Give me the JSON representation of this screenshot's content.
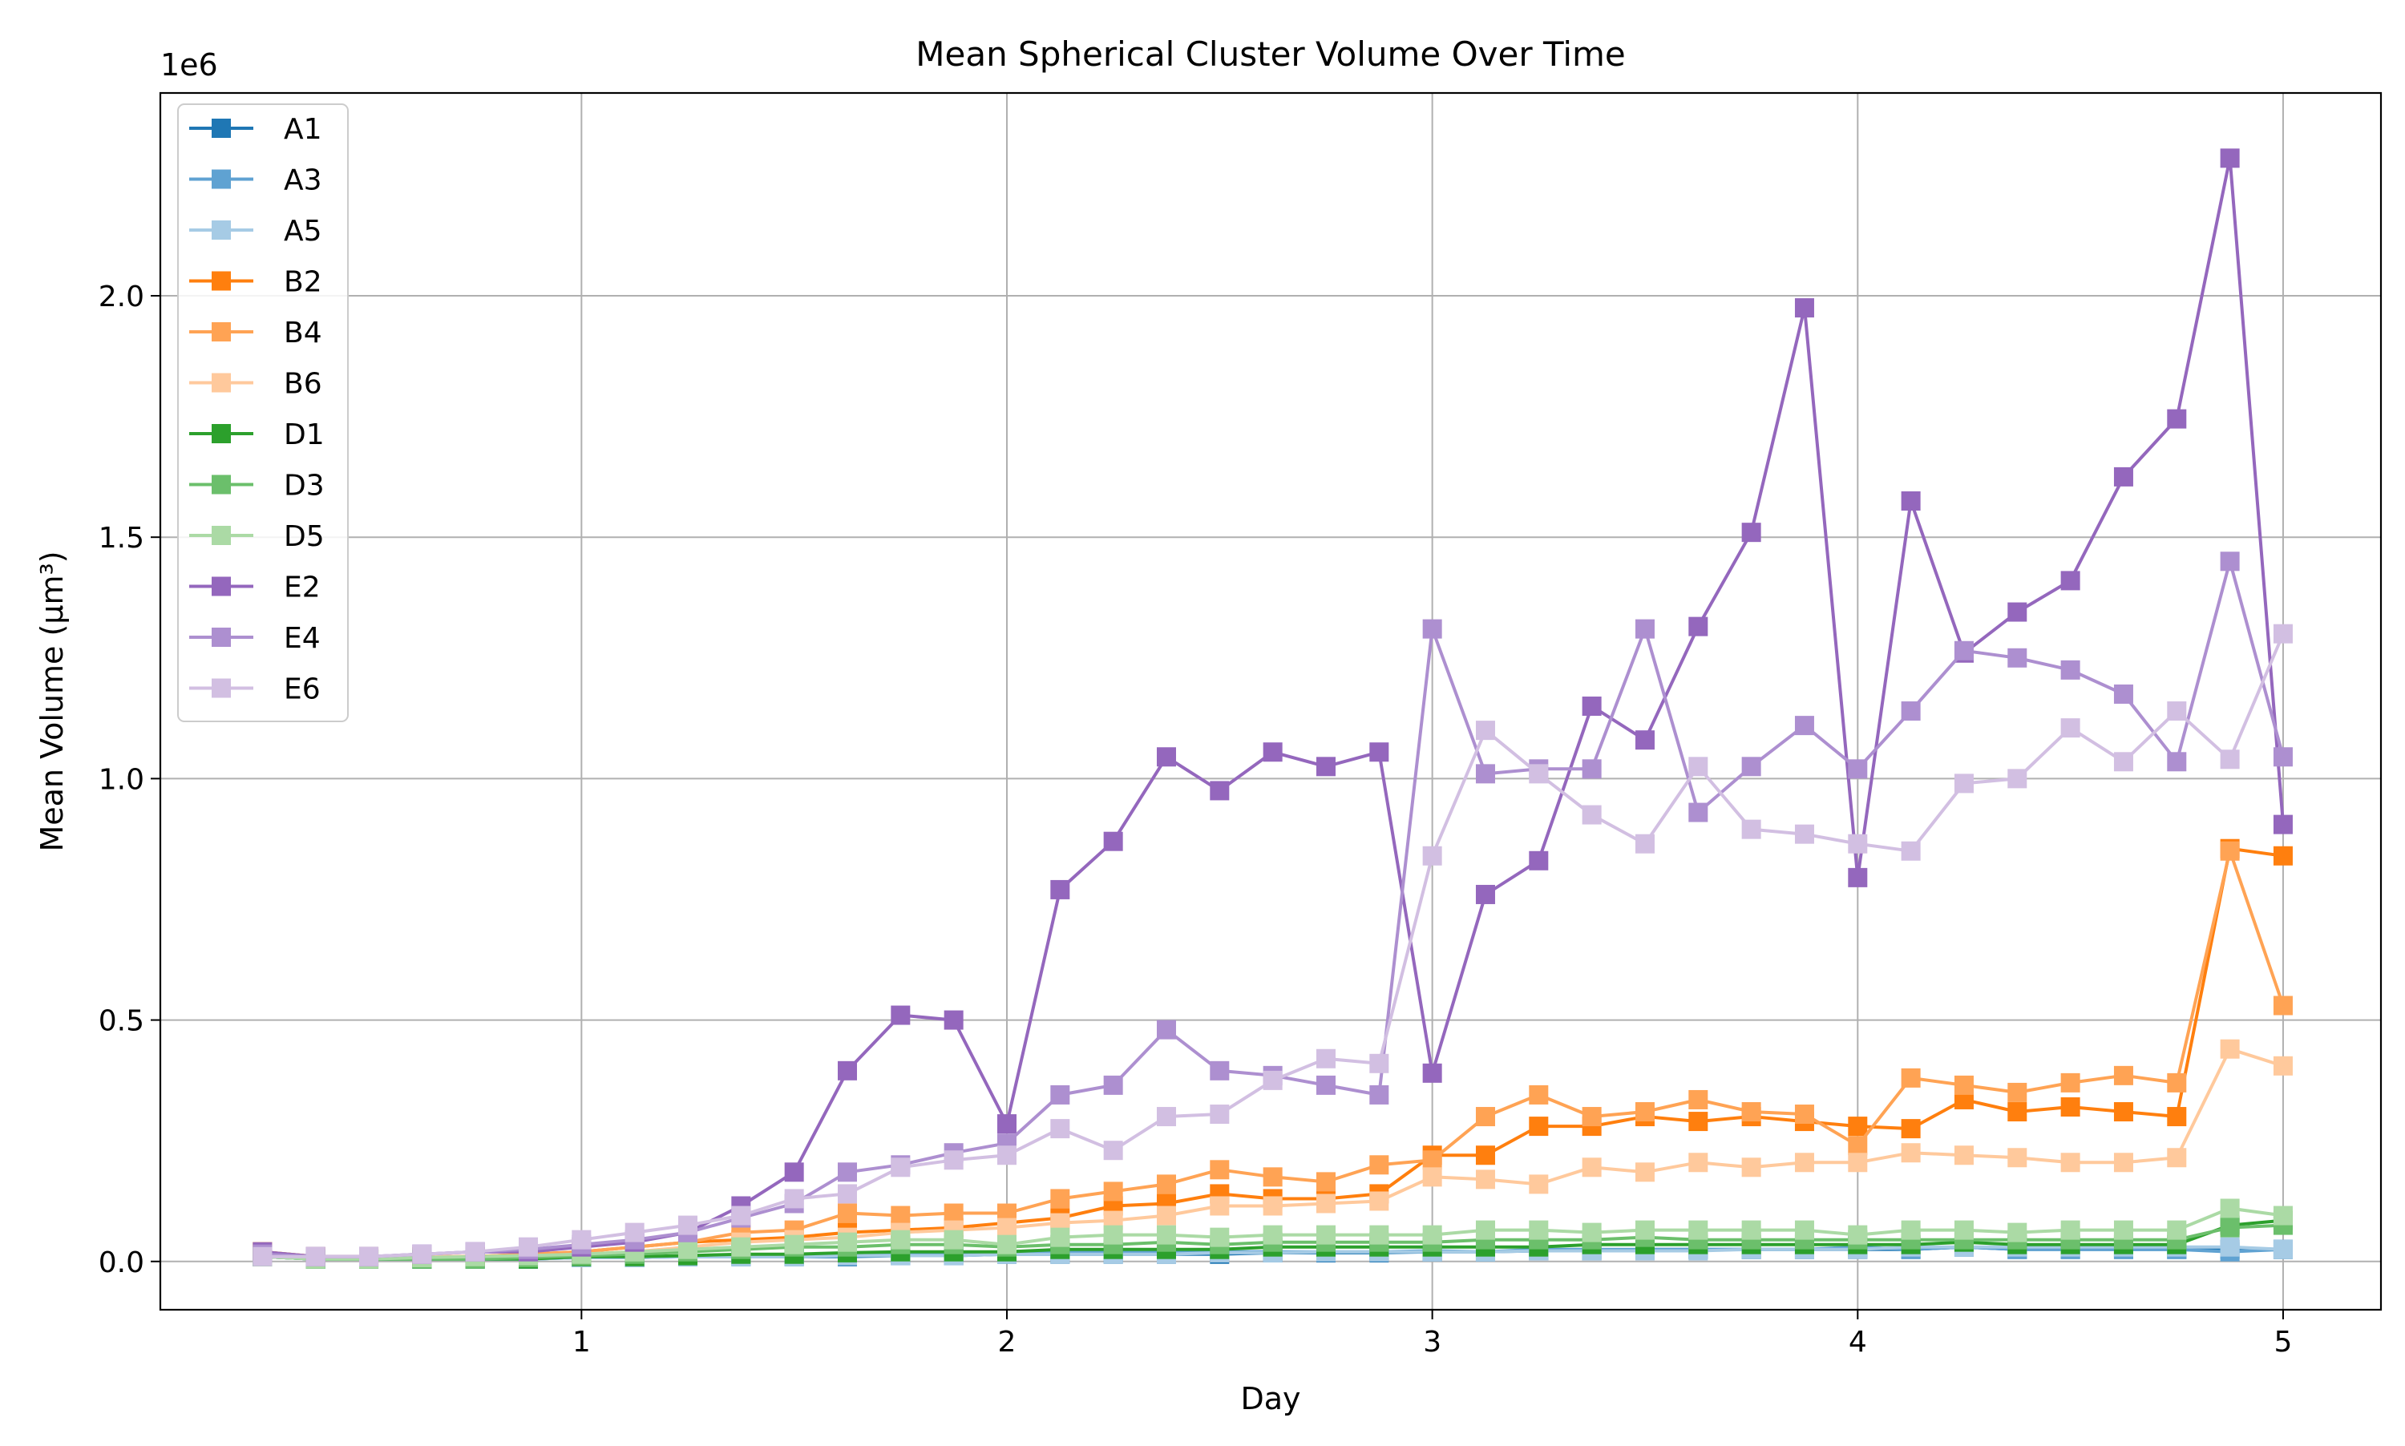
{
  "chart_data": {
    "type": "line",
    "title": "Mean Spherical Cluster Volume Over Time",
    "xlabel": "Day",
    "ylabel": "Mean Volume (µm³)",
    "y_offset_label": "1e6",
    "xlim": [
      0.01,
      5.23
    ],
    "ylim": [
      -0.1,
      2.42
    ],
    "x_ticks": [
      1,
      2,
      3,
      4,
      5
    ],
    "y_ticks": [
      0.0,
      0.5,
      1.0,
      1.5,
      2.0
    ],
    "x_tick_labels": [
      "1",
      "2",
      "3",
      "4",
      "5"
    ],
    "y_tick_labels": [
      "0.0",
      "0.5",
      "1.0",
      "1.5",
      "2.0"
    ],
    "grid": true,
    "legend_position": "upper-left",
    "marker": "square",
    "x": [
      0.25,
      0.375,
      0.5,
      0.625,
      0.75,
      0.875,
      1.0,
      1.125,
      1.25,
      1.375,
      1.5,
      1.625,
      1.75,
      1.875,
      2.0,
      2.125,
      2.25,
      2.375,
      2.5,
      2.625,
      2.75,
      2.875,
      3.0,
      3.125,
      3.25,
      3.375,
      3.5,
      3.625,
      3.75,
      3.875,
      4.0,
      4.125,
      4.25,
      4.375,
      4.5,
      4.625,
      4.75,
      4.875,
      5.0
    ],
    "series": [
      {
        "name": "A1",
        "color": "#1f77b4",
        "values": [
          0.01,
          0.005,
          0.005,
          0.005,
          0.005,
          0.005,
          0.008,
          0.008,
          0.01,
          0.01,
          0.01,
          0.01,
          0.012,
          0.012,
          0.015,
          0.015,
          0.015,
          0.015,
          0.015,
          0.018,
          0.018,
          0.018,
          0.02,
          0.02,
          0.022,
          0.022,
          0.025,
          0.025,
          0.025,
          0.025,
          0.025,
          0.025,
          0.03,
          0.025,
          0.025,
          0.025,
          0.025,
          0.025,
          0.025
        ]
      },
      {
        "name": "A3",
        "color": "#5fa2d2",
        "values": [
          0.01,
          0.005,
          0.005,
          0.005,
          0.005,
          0.005,
          0.008,
          0.008,
          0.01,
          0.012,
          0.012,
          0.015,
          0.015,
          0.018,
          0.018,
          0.02,
          0.02,
          0.02,
          0.02,
          0.02,
          0.02,
          0.02,
          0.022,
          0.02,
          0.025,
          0.025,
          0.025,
          0.025,
          0.025,
          0.025,
          0.03,
          0.025,
          0.03,
          0.025,
          0.025,
          0.025,
          0.025,
          0.02,
          0.025
        ]
      },
      {
        "name": "A5",
        "color": "#a6cbe5",
        "values": [
          0.01,
          0.005,
          0.005,
          0.005,
          0.005,
          0.005,
          0.008,
          0.008,
          0.01,
          0.01,
          0.01,
          0.012,
          0.012,
          0.012,
          0.015,
          0.015,
          0.015,
          0.015,
          0.018,
          0.018,
          0.02,
          0.02,
          0.02,
          0.02,
          0.022,
          0.022,
          0.022,
          0.022,
          0.025,
          0.025,
          0.025,
          0.03,
          0.03,
          0.03,
          0.03,
          0.03,
          0.03,
          0.03,
          0.025
        ]
      },
      {
        "name": "B2",
        "color": "#ff7f0e",
        "values": [
          0.02,
          0.01,
          0.01,
          0.01,
          0.01,
          0.015,
          0.02,
          0.03,
          0.04,
          0.045,
          0.05,
          0.06,
          0.065,
          0.07,
          0.08,
          0.09,
          0.115,
          0.12,
          0.14,
          0.13,
          0.13,
          0.14,
          0.22,
          0.22,
          0.28,
          0.28,
          0.3,
          0.29,
          0.3,
          0.29,
          0.28,
          0.275,
          0.335,
          0.31,
          0.32,
          0.31,
          0.3,
          0.855,
          0.84
        ]
      },
      {
        "name": "B4",
        "color": "#ffa354",
        "values": [
          0.02,
          0.01,
          0.01,
          0.01,
          0.01,
          0.015,
          0.02,
          0.03,
          0.04,
          0.06,
          0.065,
          0.1,
          0.095,
          0.1,
          0.1,
          0.13,
          0.145,
          0.16,
          0.19,
          0.175,
          0.165,
          0.2,
          0.21,
          0.3,
          0.345,
          0.3,
          0.31,
          0.335,
          0.31,
          0.305,
          0.24,
          0.38,
          0.365,
          0.35,
          0.37,
          0.385,
          0.37,
          0.85,
          0.53
        ]
      },
      {
        "name": "B6",
        "color": "#ffc99c",
        "values": [
          0.015,
          0.01,
          0.01,
          0.01,
          0.01,
          0.012,
          0.015,
          0.02,
          0.03,
          0.04,
          0.045,
          0.05,
          0.06,
          0.065,
          0.07,
          0.08,
          0.085,
          0.095,
          0.115,
          0.115,
          0.12,
          0.125,
          0.175,
          0.17,
          0.16,
          0.195,
          0.185,
          0.205,
          0.195,
          0.205,
          0.205,
          0.225,
          0.22,
          0.215,
          0.205,
          0.205,
          0.215,
          0.44,
          0.405
        ]
      },
      {
        "name": "D1",
        "color": "#2ca02c",
        "values": [
          0.01,
          0.005,
          0.005,
          0.005,
          0.005,
          0.005,
          0.01,
          0.01,
          0.012,
          0.015,
          0.015,
          0.018,
          0.02,
          0.02,
          0.02,
          0.025,
          0.025,
          0.025,
          0.025,
          0.03,
          0.03,
          0.03,
          0.03,
          0.03,
          0.03,
          0.035,
          0.035,
          0.035,
          0.035,
          0.035,
          0.035,
          0.035,
          0.04,
          0.035,
          0.035,
          0.035,
          0.035,
          0.075,
          0.085
        ]
      },
      {
        "name": "D3",
        "color": "#6bbf6b",
        "values": [
          0.01,
          0.005,
          0.005,
          0.005,
          0.005,
          0.008,
          0.012,
          0.015,
          0.02,
          0.025,
          0.03,
          0.03,
          0.035,
          0.035,
          0.03,
          0.035,
          0.035,
          0.04,
          0.035,
          0.04,
          0.04,
          0.04,
          0.04,
          0.045,
          0.045,
          0.045,
          0.05,
          0.045,
          0.045,
          0.045,
          0.045,
          0.045,
          0.045,
          0.045,
          0.045,
          0.045,
          0.045,
          0.07,
          0.075
        ]
      },
      {
        "name": "D5",
        "color": "#abdaa5",
        "values": [
          0.01,
          0.005,
          0.005,
          0.008,
          0.01,
          0.012,
          0.015,
          0.02,
          0.025,
          0.03,
          0.035,
          0.04,
          0.045,
          0.045,
          0.035,
          0.05,
          0.055,
          0.055,
          0.05,
          0.055,
          0.055,
          0.055,
          0.055,
          0.065,
          0.065,
          0.06,
          0.065,
          0.065,
          0.065,
          0.065,
          0.055,
          0.065,
          0.065,
          0.06,
          0.065,
          0.065,
          0.065,
          0.11,
          0.095
        ]
      },
      {
        "name": "E2",
        "color": "#9467bd",
        "values": [
          0.02,
          0.01,
          0.01,
          0.015,
          0.02,
          0.02,
          0.03,
          0.04,
          0.06,
          0.115,
          0.185,
          0.395,
          0.51,
          0.5,
          0.285,
          0.77,
          0.87,
          1.045,
          0.975,
          1.055,
          1.025,
          1.055,
          0.39,
          0.76,
          0.83,
          1.15,
          1.08,
          1.315,
          1.51,
          1.975,
          0.795,
          1.575,
          1.26,
          1.345,
          1.41,
          1.625,
          1.745,
          2.285,
          0.905
        ]
      },
      {
        "name": "E4",
        "color": "#ad8fd0",
        "values": [
          0.015,
          0.01,
          0.01,
          0.015,
          0.02,
          0.025,
          0.035,
          0.045,
          0.06,
          0.09,
          0.12,
          0.185,
          0.2,
          0.225,
          0.245,
          0.345,
          0.365,
          0.48,
          0.395,
          0.385,
          0.365,
          0.345,
          1.31,
          1.01,
          1.02,
          1.02,
          1.31,
          0.93,
          1.025,
          1.11,
          1.02,
          1.14,
          1.265,
          1.25,
          1.225,
          1.175,
          1.035,
          1.45,
          1.045
        ]
      },
      {
        "name": "E6",
        "color": "#d2bfe2",
        "values": [
          0.01,
          0.01,
          0.01,
          0.015,
          0.02,
          0.03,
          0.045,
          0.06,
          0.075,
          0.095,
          0.13,
          0.14,
          0.195,
          0.21,
          0.22,
          0.275,
          0.23,
          0.3,
          0.305,
          0.375,
          0.42,
          0.41,
          0.84,
          1.1,
          1.01,
          0.925,
          0.865,
          1.025,
          0.895,
          0.885,
          0.865,
          0.85,
          0.99,
          1.0,
          1.105,
          1.035,
          1.14,
          1.04,
          1.3
        ]
      }
    ]
  }
}
